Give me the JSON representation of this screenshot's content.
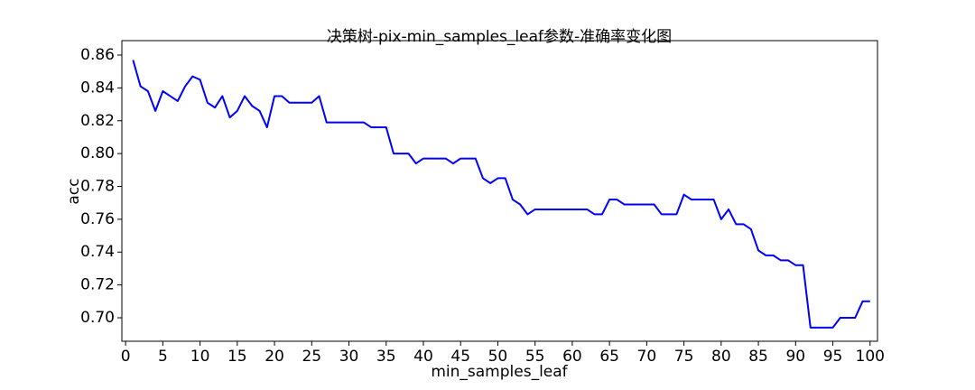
{
  "chart_data": {
    "type": "line",
    "title": "决策树-pix-min_samples_leaf参数-准确率变化图",
    "xlabel": "min_samples_leaf",
    "ylabel": "acc",
    "x": [
      1,
      2,
      3,
      4,
      5,
      6,
      7,
      8,
      9,
      10,
      11,
      12,
      13,
      14,
      15,
      16,
      17,
      18,
      19,
      20,
      21,
      22,
      23,
      24,
      25,
      26,
      27,
      28,
      29,
      30,
      31,
      32,
      33,
      34,
      35,
      36,
      37,
      38,
      39,
      40,
      41,
      42,
      43,
      44,
      45,
      46,
      47,
      48,
      49,
      50,
      51,
      52,
      53,
      54,
      55,
      56,
      57,
      58,
      59,
      60,
      61,
      62,
      63,
      64,
      65,
      66,
      67,
      68,
      69,
      70,
      71,
      72,
      73,
      74,
      75,
      76,
      77,
      78,
      79,
      80,
      81,
      82,
      83,
      84,
      85,
      86,
      87,
      88,
      89,
      90,
      91,
      92,
      93,
      94,
      95,
      96,
      97,
      98,
      99,
      100
    ],
    "series": [
      {
        "name": "acc",
        "color": "#0000ff",
        "values": [
          0.857,
          0.841,
          0.838,
          0.826,
          0.838,
          0.835,
          0.832,
          0.841,
          0.847,
          0.845,
          0.831,
          0.828,
          0.835,
          0.822,
          0.826,
          0.835,
          0.829,
          0.826,
          0.816,
          0.835,
          0.835,
          0.831,
          0.831,
          0.831,
          0.831,
          0.835,
          0.819,
          0.819,
          0.819,
          0.819,
          0.819,
          0.819,
          0.816,
          0.816,
          0.816,
          0.8,
          0.8,
          0.8,
          0.794,
          0.797,
          0.797,
          0.797,
          0.797,
          0.794,
          0.797,
          0.797,
          0.797,
          0.785,
          0.782,
          0.785,
          0.785,
          0.772,
          0.769,
          0.763,
          0.766,
          0.766,
          0.766,
          0.766,
          0.766,
          0.766,
          0.766,
          0.766,
          0.763,
          0.763,
          0.772,
          0.772,
          0.769,
          0.769,
          0.769,
          0.769,
          0.769,
          0.763,
          0.763,
          0.763,
          0.775,
          0.772,
          0.772,
          0.772,
          0.772,
          0.76,
          0.766,
          0.757,
          0.757,
          0.754,
          0.741,
          0.738,
          0.738,
          0.735,
          0.735,
          0.732,
          0.732,
          0.694,
          0.694,
          0.694,
          0.694,
          0.7,
          0.7,
          0.7,
          0.71,
          0.71
        ]
      }
    ],
    "xlim": [
      -0.5,
      101
    ],
    "xticks": [
      0,
      5,
      10,
      15,
      20,
      25,
      30,
      35,
      40,
      45,
      50,
      55,
      60,
      65,
      70,
      75,
      80,
      85,
      90,
      95,
      100
    ],
    "ylim": [
      0.6857,
      0.8688
    ],
    "yticks": [
      {
        "value": 0.7,
        "label": "0.70"
      },
      {
        "value": 0.72,
        "label": "0.72"
      },
      {
        "value": 0.74,
        "label": "0.74"
      },
      {
        "value": 0.76,
        "label": "0.76"
      },
      {
        "value": 0.78,
        "label": "0.78"
      },
      {
        "value": 0.8,
        "label": "0.80"
      },
      {
        "value": 0.82,
        "label": "0.82"
      },
      {
        "value": 0.84,
        "label": "0.84"
      },
      {
        "value": 0.86,
        "label": "0.86"
      }
    ]
  }
}
